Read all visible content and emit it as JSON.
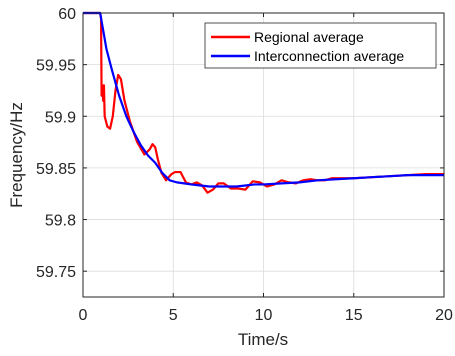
{
  "chart_data": {
    "type": "line",
    "xlabel": "Time/s",
    "ylabel": "Frequency/Hz",
    "xlim": [
      0,
      20
    ],
    "ylim": [
      59.725,
      60
    ],
    "x_ticks": [
      0,
      5,
      10,
      15,
      20
    ],
    "y_ticks": [
      59.75,
      59.8,
      59.85,
      59.9,
      59.95,
      60
    ],
    "x_tick_labels": [
      "0",
      "5",
      "10",
      "15",
      "20"
    ],
    "y_tick_labels": [
      "59.75",
      "59.8",
      "59.85",
      "59.9",
      "59.95",
      "60"
    ],
    "grid": true,
    "legend_position": "top-right",
    "series": [
      {
        "name": "Regional average",
        "color": "#ff0000",
        "x": [
          0,
          0.95,
          1.0,
          1.03,
          1.08,
          1.12,
          1.16,
          1.2,
          1.35,
          1.5,
          1.65,
          1.8,
          1.95,
          2.1,
          2.3,
          2.6,
          3.0,
          3.4,
          3.7,
          3.85,
          4.0,
          4.15,
          4.35,
          4.6,
          4.9,
          5.1,
          5.4,
          5.7,
          6.0,
          6.3,
          6.6,
          6.9,
          7.2,
          7.5,
          7.8,
          8.2,
          8.6,
          9.0,
          9.4,
          9.8,
          10.2,
          10.6,
          11.0,
          11.4,
          11.8,
          12.2,
          12.6,
          13.0,
          13.4,
          13.8,
          14.2,
          14.6,
          15.0,
          16.0,
          17.0,
          18.0,
          19.0,
          20.0
        ],
        "y": [
          60.0,
          60.0,
          59.995,
          59.92,
          59.93,
          59.915,
          59.93,
          59.9,
          59.89,
          59.888,
          59.9,
          59.925,
          59.94,
          59.936,
          59.915,
          59.895,
          59.875,
          59.863,
          59.868,
          59.873,
          59.87,
          59.858,
          59.845,
          59.838,
          59.844,
          59.846,
          59.846,
          59.836,
          59.834,
          59.836,
          59.833,
          59.826,
          59.829,
          59.835,
          59.835,
          59.83,
          59.83,
          59.829,
          59.837,
          59.836,
          59.832,
          59.834,
          59.838,
          59.836,
          59.835,
          59.838,
          59.839,
          59.838,
          59.838,
          59.84,
          59.84,
          59.84,
          59.84,
          59.841,
          59.842,
          59.843,
          59.844,
          59.844
        ]
      },
      {
        "name": "Interconnection average",
        "color": "#0000ff",
        "x": [
          0,
          0.95,
          1.0,
          1.1,
          1.3,
          1.6,
          2.0,
          2.4,
          2.8,
          3.2,
          3.6,
          4.0,
          4.4,
          4.8,
          5.2,
          5.6,
          6.0,
          6.5,
          7.0,
          7.5,
          8.0,
          8.5,
          9.0,
          9.5,
          10.0,
          11.0,
          12.0,
          13.0,
          14.0,
          15.0,
          16.0,
          17.0,
          18.0,
          19.0,
          20.0
        ],
        "y": [
          60.0,
          60.0,
          59.995,
          59.985,
          59.965,
          59.945,
          59.92,
          59.9,
          59.885,
          59.872,
          59.862,
          59.855,
          59.845,
          59.838,
          59.836,
          59.835,
          59.834,
          59.833,
          59.832,
          59.832,
          59.832,
          59.832,
          59.833,
          59.834,
          59.834,
          59.835,
          59.836,
          59.838,
          59.839,
          59.84,
          59.841,
          59.842,
          59.843,
          59.843,
          59.843
        ]
      }
    ]
  }
}
